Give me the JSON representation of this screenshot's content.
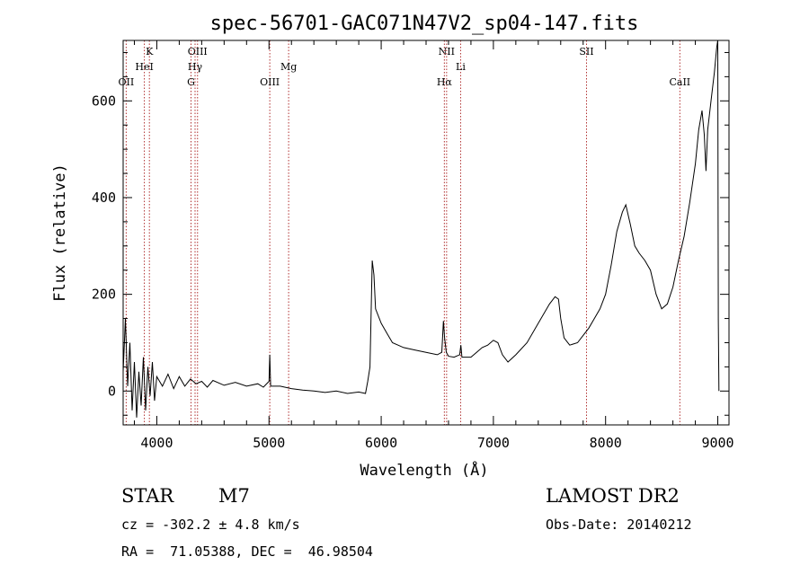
{
  "chart_data": {
    "type": "line",
    "title": "spec-56701-GAC071N47V2_sp04-147.fits",
    "xlabel": "Wavelength (Å)",
    "ylabel": "Flux (relative)",
    "xlim": [
      3700,
      9100
    ],
    "ylim": [
      -70,
      725
    ],
    "xticks": [
      4000,
      5000,
      6000,
      7000,
      8000,
      9000
    ],
    "yticks": [
      0,
      200,
      400,
      600
    ],
    "line_color": "#000000",
    "marker_color": "#b03030",
    "lines": [
      {
        "label": "OII",
        "x": 3727,
        "row": 3
      },
      {
        "label": "K",
        "x": 3934,
        "row": 1
      },
      {
        "label": "HeI",
        "x": 3889,
        "row": 2
      },
      {
        "label": "OIII",
        "x": 4363,
        "row": 1
      },
      {
        "label": "Hγ",
        "x": 4341,
        "row": 2
      },
      {
        "label": "G",
        "x": 4305,
        "row": 3
      },
      {
        "label": "OIII",
        "x": 5007,
        "row": 3
      },
      {
        "label": "Mg",
        "x": 5175,
        "row": 2
      },
      {
        "label": "NII",
        "x": 6583,
        "row": 1
      },
      {
        "label": "Hα",
        "x": 6563,
        "row": 3
      },
      {
        "label": "Li",
        "x": 6708,
        "row": 2
      },
      {
        "label": "SII",
        "x": 7830,
        "row": 1
      },
      {
        "label": "CaII",
        "x": 8662,
        "row": 3
      }
    ],
    "spectrum": [
      [
        3700,
        40
      ],
      [
        3720,
        150
      ],
      [
        3740,
        10
      ],
      [
        3760,
        100
      ],
      [
        3780,
        -40
      ],
      [
        3800,
        60
      ],
      [
        3820,
        -55
      ],
      [
        3840,
        40
      ],
      [
        3860,
        -30
      ],
      [
        3880,
        70
      ],
      [
        3900,
        -40
      ],
      [
        3920,
        50
      ],
      [
        3940,
        -10
      ],
      [
        3960,
        60
      ],
      [
        3980,
        -20
      ],
      [
        4000,
        30
      ],
      [
        4050,
        10
      ],
      [
        4100,
        35
      ],
      [
        4150,
        5
      ],
      [
        4200,
        30
      ],
      [
        4250,
        10
      ],
      [
        4300,
        25
      ],
      [
        4350,
        15
      ],
      [
        4400,
        20
      ],
      [
        4450,
        8
      ],
      [
        4500,
        22
      ],
      [
        4600,
        12
      ],
      [
        4700,
        18
      ],
      [
        4800,
        10
      ],
      [
        4900,
        15
      ],
      [
        4950,
        8
      ],
      [
        5000,
        20
      ],
      [
        5007,
        75
      ],
      [
        5015,
        10
      ],
      [
        5100,
        10
      ],
      [
        5200,
        5
      ],
      [
        5300,
        2
      ],
      [
        5400,
        0
      ],
      [
        5500,
        -3
      ],
      [
        5600,
        0
      ],
      [
        5700,
        -5
      ],
      [
        5800,
        -2
      ],
      [
        5860,
        -5
      ],
      [
        5880,
        20
      ],
      [
        5900,
        50
      ],
      [
        5920,
        270
      ],
      [
        5935,
        240
      ],
      [
        5950,
        170
      ],
      [
        6000,
        140
      ],
      [
        6050,
        120
      ],
      [
        6100,
        100
      ],
      [
        6150,
        95
      ],
      [
        6200,
        90
      ],
      [
        6300,
        85
      ],
      [
        6400,
        80
      ],
      [
        6500,
        75
      ],
      [
        6540,
        80
      ],
      [
        6555,
        145
      ],
      [
        6565,
        110
      ],
      [
        6580,
        80
      ],
      [
        6600,
        72
      ],
      [
        6650,
        70
      ],
      [
        6700,
        75
      ],
      [
        6710,
        95
      ],
      [
        6720,
        70
      ],
      [
        6800,
        70
      ],
      [
        6850,
        80
      ],
      [
        6900,
        90
      ],
      [
        6950,
        95
      ],
      [
        7000,
        105
      ],
      [
        7040,
        100
      ],
      [
        7080,
        75
      ],
      [
        7130,
        60
      ],
      [
        7200,
        75
      ],
      [
        7300,
        100
      ],
      [
        7400,
        140
      ],
      [
        7500,
        180
      ],
      [
        7550,
        195
      ],
      [
        7580,
        190
      ],
      [
        7600,
        150
      ],
      [
        7630,
        110
      ],
      [
        7680,
        95
      ],
      [
        7750,
        100
      ],
      [
        7800,
        115
      ],
      [
        7850,
        130
      ],
      [
        7900,
        150
      ],
      [
        7950,
        170
      ],
      [
        8000,
        200
      ],
      [
        8050,
        260
      ],
      [
        8100,
        330
      ],
      [
        8150,
        370
      ],
      [
        8180,
        385
      ],
      [
        8220,
        345
      ],
      [
        8260,
        300
      ],
      [
        8300,
        285
      ],
      [
        8350,
        270
      ],
      [
        8400,
        250
      ],
      [
        8450,
        200
      ],
      [
        8500,
        170
      ],
      [
        8550,
        180
      ],
      [
        8600,
        215
      ],
      [
        8650,
        270
      ],
      [
        8700,
        320
      ],
      [
        8750,
        390
      ],
      [
        8800,
        470
      ],
      [
        8830,
        540
      ],
      [
        8860,
        580
      ],
      [
        8880,
        530
      ],
      [
        8895,
        455
      ],
      [
        8910,
        540
      ],
      [
        8940,
        600
      ],
      [
        8970,
        660
      ],
      [
        8990,
        710
      ],
      [
        9000,
        725
      ],
      [
        9005,
        150
      ],
      [
        9010,
        0
      ]
    ]
  }
}
